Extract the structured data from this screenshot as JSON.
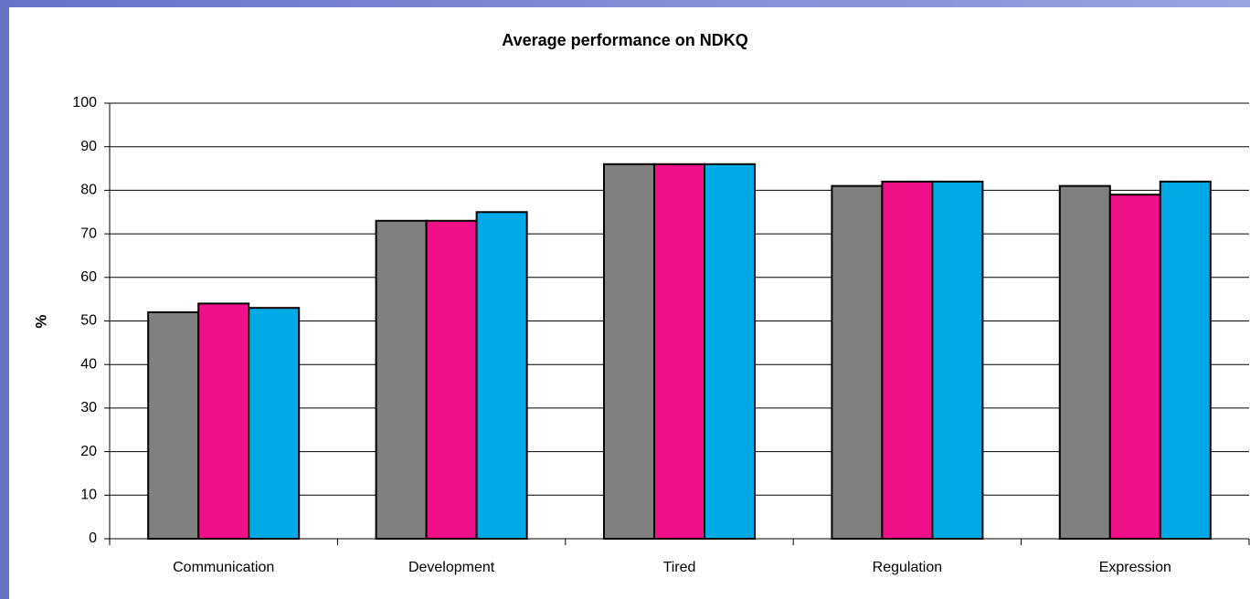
{
  "chart_data": {
    "type": "bar",
    "title": "Average performance on NDKQ",
    "y_label": "%",
    "categories": [
      "Communication",
      "Development",
      "Tired",
      "Regulation",
      "Expression"
    ],
    "series": [
      {
        "color": "#808080",
        "values": [
          52,
          73,
          86,
          81,
          81
        ]
      },
      {
        "color": "#f0108a",
        "values": [
          54,
          73,
          86,
          82,
          79
        ]
      },
      {
        "color": "#00aae6",
        "values": [
          53,
          75,
          86,
          82,
          82
        ]
      }
    ],
    "ylim": [
      0,
      100
    ],
    "yticks": [
      0,
      10,
      20,
      30,
      40,
      50,
      60,
      70,
      80,
      90,
      100
    ],
    "grid": true
  }
}
